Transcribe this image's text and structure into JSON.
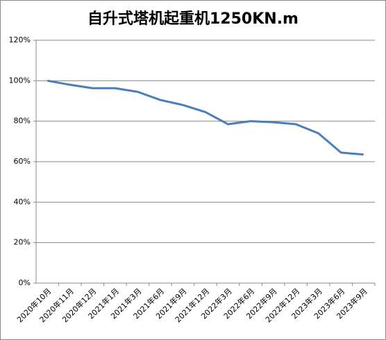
{
  "chart_data": {
    "type": "line",
    "title": "自升式塔机起重机1250KN.m",
    "categories": [
      "2020年10月",
      "2020年11月",
      "2020年12月",
      "2021年1月",
      "2021年3月",
      "2021年6月",
      "2021年9月",
      "2021年12月",
      "2022年3月",
      "2022年6月",
      "2022年9月",
      "2022年12月",
      "2023年3月",
      "2023年6月",
      "2023年9月"
    ],
    "series": [
      {
        "name": "自升式塔机起重机1250KN.m",
        "color": "#4a7ebb",
        "values": [
          100,
          98,
          96.3,
          96.3,
          94.5,
          90.5,
          88,
          84.5,
          78.5,
          80,
          79.5,
          78.5,
          74,
          64.5,
          63.5
        ]
      }
    ],
    "ylim": [
      0,
      120
    ],
    "yticks": [
      {
        "value": 0,
        "label": "0%"
      },
      {
        "value": 20,
        "label": "20%"
      },
      {
        "value": 40,
        "label": "40%"
      },
      {
        "value": 60,
        "label": "60%"
      },
      {
        "value": 80,
        "label": "80%"
      },
      {
        "value": 100,
        "label": "100%"
      },
      {
        "value": 120,
        "label": "120%"
      }
    ],
    "grid": true
  }
}
